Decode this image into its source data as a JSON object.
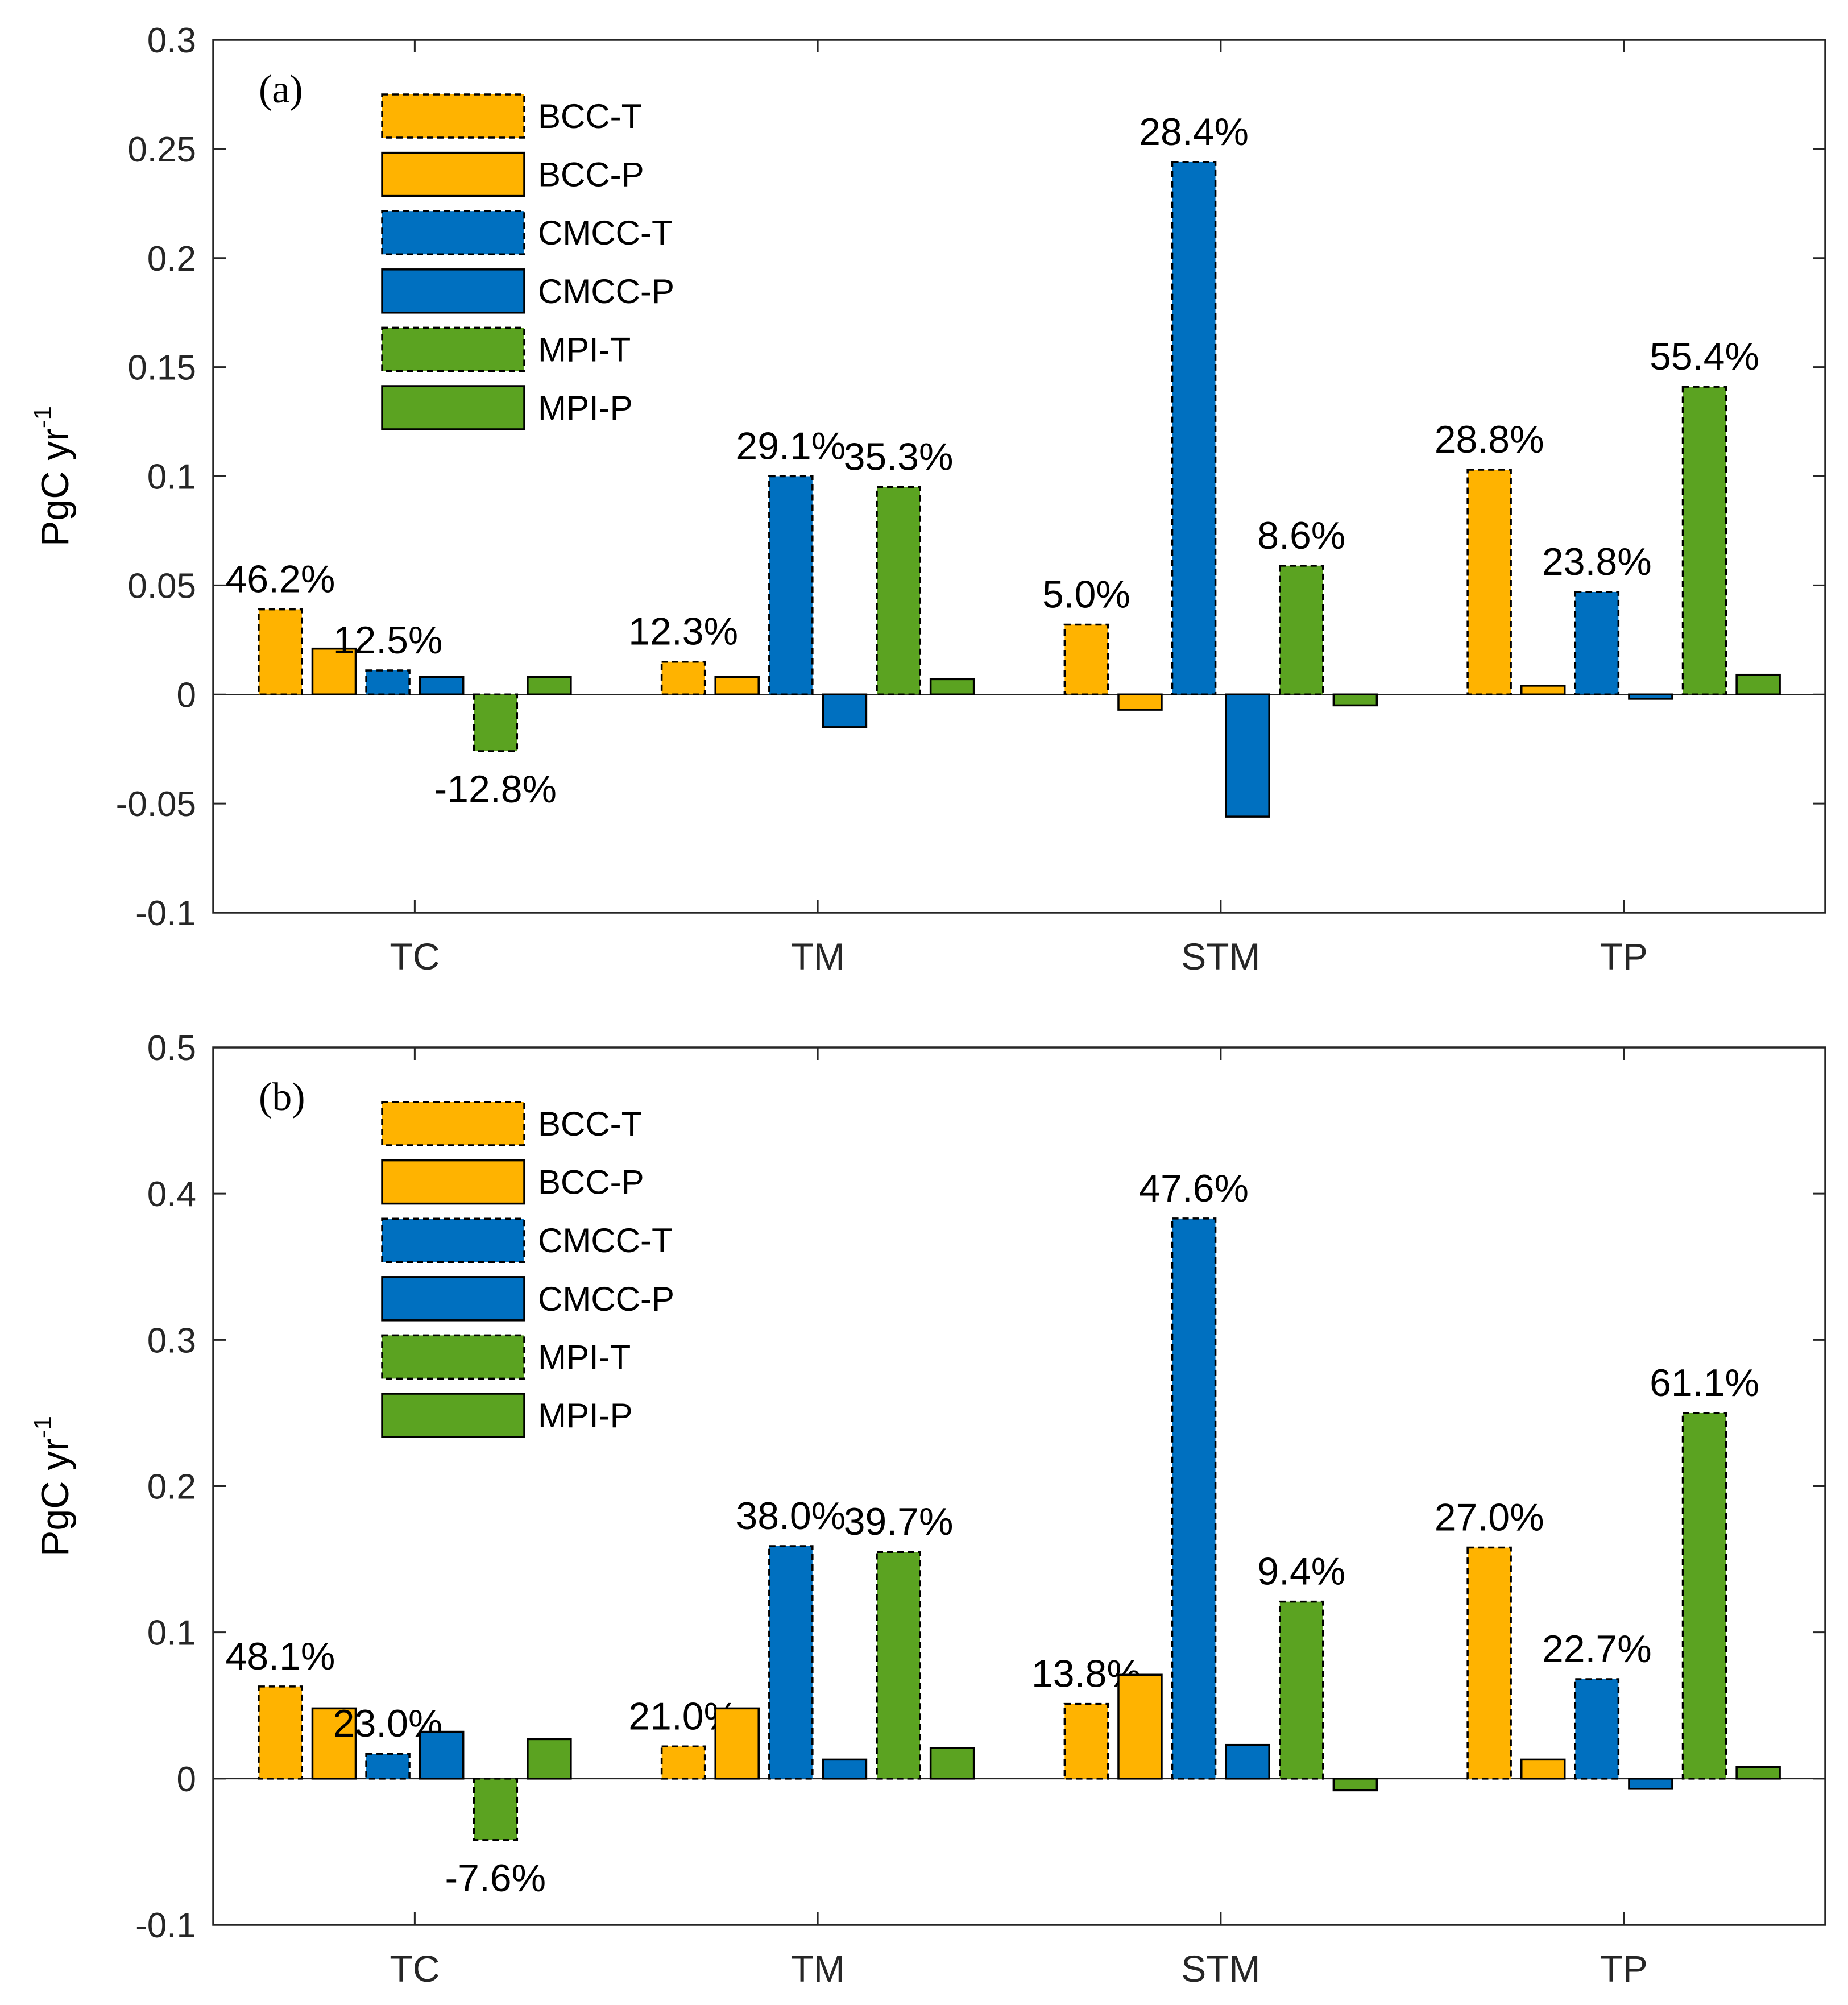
{
  "chart_data": [
    {
      "type": "bar",
      "panel_label": "(a)",
      "ylabel": "PgC yr",
      "ylabel_sup": "-1",
      "ylim": [
        -0.1,
        0.3
      ],
      "yticks": [
        -0.1,
        -0.05,
        0,
        0.05,
        0.1,
        0.15,
        0.2,
        0.25,
        0.3
      ],
      "ytick_labels": [
        "-0.1",
        "-0.05",
        "0",
        "0.05",
        "0.1",
        "0.15",
        "0.2",
        "0.25",
        "0.3"
      ],
      "categories": [
        "TC",
        "TM",
        "STM",
        "TP"
      ],
      "legend_position": "top-left",
      "series": [
        {
          "name": "BCC-T",
          "color": "#FFB300",
          "dashed": true,
          "values": [
            0.039,
            0.015,
            0.032,
            0.103
          ],
          "labels": [
            "46.2%",
            "12.3%",
            "5.0%",
            "28.8%"
          ]
        },
        {
          "name": "BCC-P",
          "color": "#FFB300",
          "dashed": false,
          "values": [
            0.021,
            0.008,
            -0.007,
            0.004
          ],
          "labels": [
            "",
            "",
            "",
            ""
          ]
        },
        {
          "name": "CMCC-T",
          "color": "#0070C0",
          "dashed": true,
          "values": [
            0.011,
            0.1,
            0.244,
            0.047
          ],
          "labels": [
            "12.5%",
            "29.1%",
            "28.4%",
            "23.8%"
          ]
        },
        {
          "name": "CMCC-P",
          "color": "#0070C0",
          "dashed": false,
          "values": [
            0.008,
            -0.015,
            -0.056,
            -0.002
          ],
          "labels": [
            "",
            "",
            "",
            ""
          ]
        },
        {
          "name": "MPI-T",
          "color": "#5BA321",
          "dashed": true,
          "values": [
            -0.026,
            0.095,
            0.059,
            0.141
          ],
          "labels": [
            "-12.8%",
            "35.3%",
            "8.6%",
            "55.4%"
          ]
        },
        {
          "name": "MPI-P",
          "color": "#5BA321",
          "dashed": false,
          "values": [
            0.008,
            0.007,
            -0.005,
            0.009
          ],
          "labels": [
            "",
            "",
            "",
            ""
          ]
        }
      ]
    },
    {
      "type": "bar",
      "panel_label": "(b)",
      "ylabel": "PgC yr",
      "ylabel_sup": "-1",
      "ylim": [
        -0.1,
        0.5
      ],
      "yticks": [
        -0.1,
        0,
        0.1,
        0.2,
        0.3,
        0.4,
        0.5
      ],
      "ytick_labels": [
        "-0.1",
        "0",
        "0.1",
        "0.2",
        "0.3",
        "0.4",
        "0.5"
      ],
      "categories": [
        "TC",
        "TM",
        "STM",
        "TP"
      ],
      "legend_position": "top-left",
      "series": [
        {
          "name": "BCC-T",
          "color": "#FFB300",
          "dashed": true,
          "values": [
            0.063,
            0.022,
            0.051,
            0.158
          ],
          "labels": [
            "48.1%",
            "21.0%",
            "13.8%",
            "27.0%"
          ]
        },
        {
          "name": "BCC-P",
          "color": "#FFB300",
          "dashed": false,
          "values": [
            0.048,
            0.048,
            0.071,
            0.013
          ],
          "labels": [
            "",
            "",
            "",
            ""
          ]
        },
        {
          "name": "CMCC-T",
          "color": "#0070C0",
          "dashed": true,
          "values": [
            0.017,
            0.159,
            0.383,
            0.068
          ],
          "labels": [
            "23.0%",
            "38.0%",
            "47.6%",
            "22.7%"
          ]
        },
        {
          "name": "CMCC-P",
          "color": "#0070C0",
          "dashed": false,
          "values": [
            0.032,
            0.013,
            0.023,
            -0.007
          ],
          "labels": [
            "",
            "",
            "",
            ""
          ]
        },
        {
          "name": "MPI-T",
          "color": "#5BA321",
          "dashed": true,
          "values": [
            -0.042,
            0.155,
            0.121,
            0.25
          ],
          "labels": [
            "-7.6%",
            "39.7%",
            "9.4%",
            "61.1%"
          ]
        },
        {
          "name": "MPI-P",
          "color": "#5BA321",
          "dashed": false,
          "values": [
            0.027,
            0.021,
            -0.008,
            0.008
          ],
          "labels": [
            "",
            "",
            "",
            ""
          ]
        }
      ]
    }
  ]
}
